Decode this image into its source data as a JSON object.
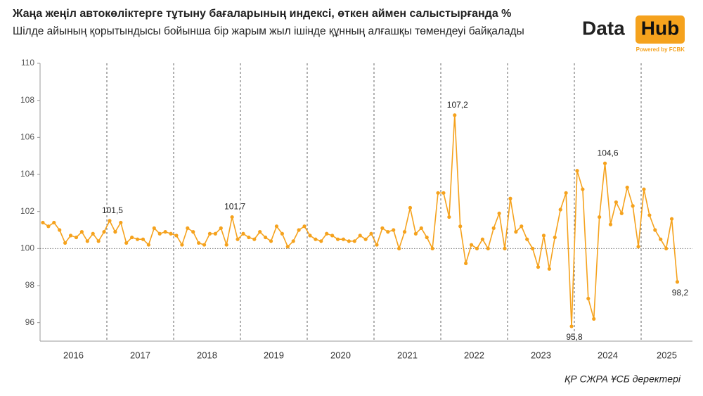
{
  "chart_data": {
    "type": "line",
    "title": "Жаңа жеңіл автокөліктерге тұтыну бағаларының индексі, өткен аймен салыстырғанда %",
    "subtitle": "Шілде айының қорытындысы бойынша бір жарым жыл ішінде құнның алғашқы төмендеуі байқалады",
    "x_labels": [
      "2016",
      "2017",
      "2018",
      "2019",
      "2020",
      "2021",
      "2022",
      "2023",
      "2024",
      "2025"
    ],
    "values": [
      101.4,
      101.2,
      101.4,
      101.0,
      100.3,
      100.7,
      100.6,
      100.9,
      100.4,
      100.8,
      100.4,
      100.9,
      101.5,
      100.9,
      101.4,
      100.3,
      100.6,
      100.5,
      100.5,
      100.2,
      101.1,
      100.8,
      100.9,
      100.8,
      100.7,
      100.2,
      101.1,
      100.9,
      100.3,
      100.2,
      100.8,
      100.8,
      101.1,
      100.2,
      101.7,
      100.5,
      100.8,
      100.6,
      100.5,
      100.9,
      100.6,
      100.4,
      101.2,
      100.8,
      100.1,
      100.4,
      101.0,
      101.2,
      100.7,
      100.5,
      100.4,
      100.8,
      100.7,
      100.5,
      100.5,
      100.4,
      100.4,
      100.7,
      100.5,
      100.8,
      100.2,
      101.1,
      100.9,
      101.0,
      100.0,
      100.9,
      102.2,
      100.8,
      101.1,
      100.6,
      100.0,
      103.0,
      103.0,
      101.7,
      107.2,
      101.2,
      99.2,
      100.2,
      100.0,
      100.5,
      100.0,
      101.1,
      101.9,
      100.0,
      102.7,
      100.9,
      101.2,
      100.5,
      100.0,
      99.0,
      100.7,
      98.9,
      100.6,
      102.1,
      103.0,
      95.8,
      104.2,
      103.2,
      97.3,
      96.2,
      101.7,
      104.6,
      101.3,
      102.5,
      101.9,
      103.3,
      102.3,
      100.1,
      103.2,
      101.8,
      101.0,
      100.5,
      100.0,
      101.6,
      98.2
    ],
    "value_labels": [
      null,
      null,
      null,
      null,
      null,
      null,
      null,
      null,
      null,
      null,
      null,
      null,
      "101,5",
      null,
      null,
      null,
      null,
      null,
      null,
      null,
      null,
      null,
      null,
      null,
      null,
      null,
      null,
      null,
      null,
      null,
      null,
      null,
      null,
      null,
      "101,7",
      null,
      null,
      null,
      null,
      null,
      null,
      null,
      null,
      null,
      null,
      null,
      null,
      null,
      null,
      null,
      null,
      null,
      null,
      null,
      null,
      null,
      null,
      null,
      null,
      null,
      null,
      null,
      null,
      null,
      null,
      null,
      null,
      null,
      null,
      null,
      null,
      null,
      null,
      null,
      "107,2",
      null,
      null,
      null,
      null,
      null,
      null,
      null,
      null,
      null,
      null,
      null,
      null,
      null,
      null,
      null,
      null,
      null,
      null,
      null,
      null,
      "95,8",
      null,
      null,
      null,
      null,
      null,
      "104,6",
      null,
      null,
      null,
      null,
      null,
      null,
      null,
      null,
      null,
      null,
      null,
      null,
      "98,2"
    ],
    "color": "#f5a21d",
    "ylim": [
      95,
      110
    ],
    "yticks": [
      96,
      98,
      100,
      102,
      104,
      106,
      108,
      110
    ],
    "reference_line": 100
  },
  "logo": {
    "word1": "Data",
    "word2": "Hub",
    "tagline": "Powered by FCBK"
  },
  "source": "ҚР СЖРА ҰСБ деректері"
}
